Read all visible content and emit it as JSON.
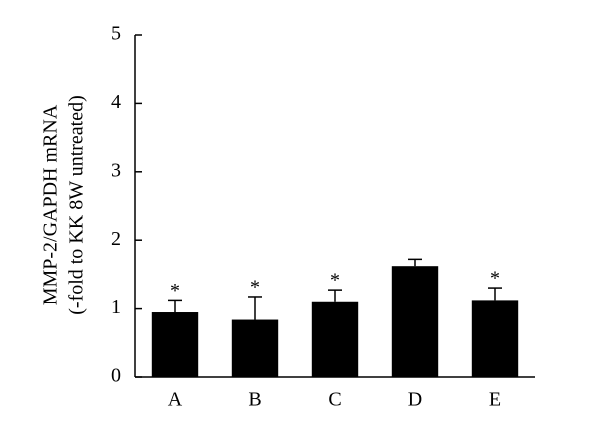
{
  "chart_data": {
    "type": "bar",
    "y_label": [
      "MMP-2/GAPDH mRNA",
      "(-fold to KK 8W untreated)"
    ],
    "categories": [
      "A",
      "B",
      "C",
      "D",
      "E"
    ],
    "values": [
      0.95,
      0.84,
      1.1,
      1.62,
      1.12
    ],
    "errors": [
      0.17,
      0.33,
      0.17,
      0.1,
      0.18
    ],
    "significance": [
      "*",
      "*",
      "*",
      null,
      "*"
    ],
    "color": "#000000",
    "ylim": [
      0,
      5
    ],
    "yticks": [
      0,
      1,
      2,
      3,
      4,
      5
    ],
    "grid": false
  }
}
